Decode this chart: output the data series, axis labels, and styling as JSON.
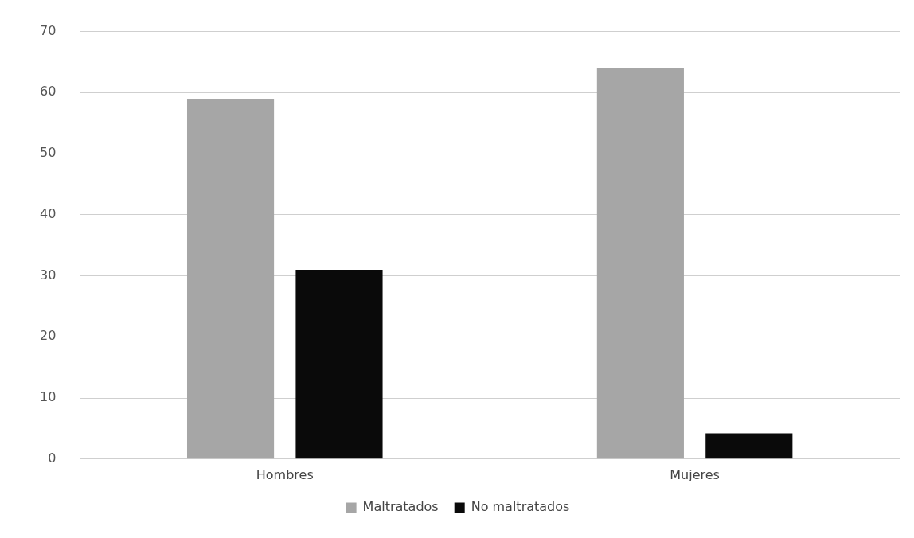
{
  "chart_data": {
    "type": "bar",
    "categories": [
      "Hombres",
      "Mujeres"
    ],
    "series": [
      {
        "name": "Maltratados",
        "color": "#a6a6a6",
        "values": [
          59,
          64
        ]
      },
      {
        "name": "No maltratados",
        "color": "#0a0a0a",
        "values": [
          31,
          4.2
        ]
      }
    ],
    "ylim": [
      0,
      70
    ],
    "yticks": [
      0,
      10,
      20,
      30,
      40,
      50,
      60,
      70
    ],
    "grid": "y",
    "legend": "bottom"
  }
}
